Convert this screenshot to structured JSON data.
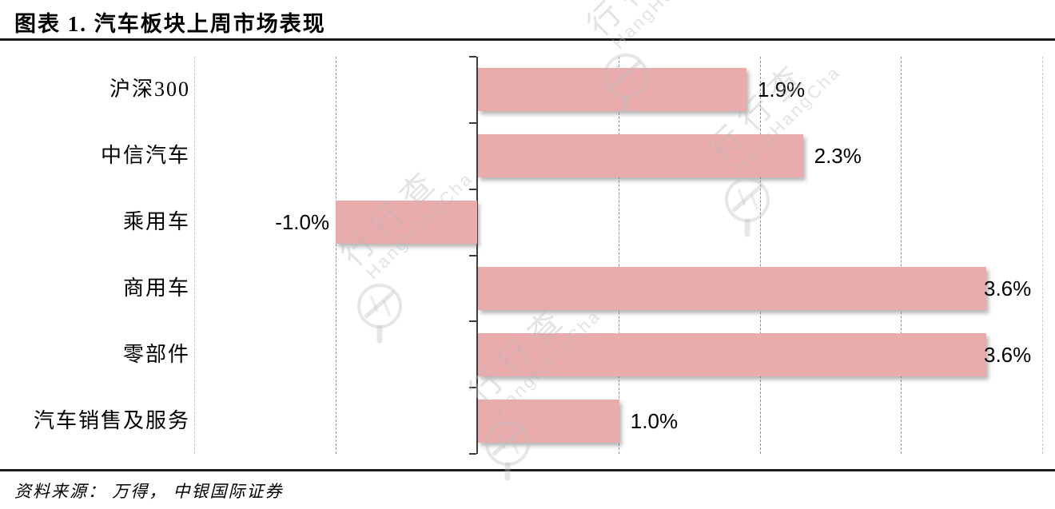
{
  "header": {
    "title": "图表 1. 汽车板块上周市场表现"
  },
  "footer": {
    "source": "资料来源： 万得， 中银国际证券"
  },
  "watermark": {
    "logo_text": "行行查",
    "logo_subtext": "HangHangCha"
  },
  "colors": {
    "bar": "#E9ABAB",
    "bar_shadow": "rgba(90,90,90,0.45)",
    "axis": "#3d3d3d",
    "gridline": "#8f8f8f",
    "gridline_outer": "#c6c6c6",
    "rule": "#1b1b1b",
    "text": "#000000",
    "background": "#ffffff"
  },
  "chart_data": {
    "type": "bar",
    "orientation": "horizontal",
    "title": "图表 1. 汽车板块上周市场表现",
    "categories": [
      "沪深300",
      "中信汽车",
      "乘用车",
      "商用车",
      "零部件",
      "汽车销售及服务"
    ],
    "values": [
      1.9,
      2.3,
      -1.0,
      3.6,
      3.6,
      1.0
    ],
    "value_labels": [
      "1.9%",
      "2.3%",
      "-1.0%",
      "3.6%",
      "3.6%",
      "1.0%"
    ],
    "unit": "%",
    "xlabel": "",
    "ylabel": "",
    "xlim": [
      -2,
      4
    ],
    "gridlines": [
      -2,
      -1,
      1,
      2,
      3,
      4
    ],
    "grid": "vertical-dashed",
    "legend": "none",
    "source": "资料来源： 万得， 中银国际证券"
  }
}
